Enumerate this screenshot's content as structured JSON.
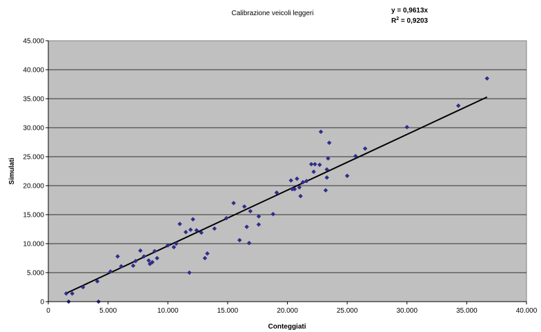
{
  "chart_data": {
    "type": "scatter",
    "title": "Calibrazione veicoli leggeri",
    "xlabel": "Conteggiati",
    "ylabel": "Simulati",
    "xlim": [
      0,
      40000
    ],
    "ylim": [
      0,
      45000
    ],
    "x_ticks": [
      "0",
      "5.000",
      "10.000",
      "15.000",
      "20.000",
      "25.000",
      "30.000",
      "35.000",
      "40.000"
    ],
    "y_ticks": [
      "0",
      "5.000",
      "10.000",
      "15.000",
      "20.000",
      "25.000",
      "30.000",
      "35.000",
      "40.000",
      "45.000"
    ],
    "grid": "horizontal",
    "plot_background": "#c0c0c0",
    "marker_color": "#2e2e8c",
    "trendline": {
      "slope": 0.9613,
      "x_range": [
        1500,
        36700
      ],
      "equation_label": "y = 0,9613x",
      "r2_prefix": "R",
      "r2_exponent": "2",
      "r2_value": " = 0,9203"
    },
    "points": [
      [
        1500,
        1400
      ],
      [
        1700,
        0
      ],
      [
        2000,
        1400
      ],
      [
        2900,
        2500
      ],
      [
        4100,
        3500
      ],
      [
        4200,
        0
      ],
      [
        5200,
        5200
      ],
      [
        5800,
        7800
      ],
      [
        6100,
        6100
      ],
      [
        7100,
        6200
      ],
      [
        7300,
        7000
      ],
      [
        7700,
        8800
      ],
      [
        8000,
        7800
      ],
      [
        8400,
        7100
      ],
      [
        8500,
        6500
      ],
      [
        8700,
        6800
      ],
      [
        8900,
        8700
      ],
      [
        9100,
        7500
      ],
      [
        10000,
        9700
      ],
      [
        10500,
        9400
      ],
      [
        10700,
        10000
      ],
      [
        11000,
        13400
      ],
      [
        11500,
        12000
      ],
      [
        11800,
        5000
      ],
      [
        11900,
        12400
      ],
      [
        12100,
        14200
      ],
      [
        12400,
        12300
      ],
      [
        12800,
        11900
      ],
      [
        13100,
        7500
      ],
      [
        13300,
        8300
      ],
      [
        13900,
        12600
      ],
      [
        14900,
        14400
      ],
      [
        15500,
        17000
      ],
      [
        16000,
        10600
      ],
      [
        16400,
        16400
      ],
      [
        16600,
        12900
      ],
      [
        16800,
        10100
      ],
      [
        16900,
        15600
      ],
      [
        17600,
        14700
      ],
      [
        17600,
        13300
      ],
      [
        18800,
        15100
      ],
      [
        19100,
        18800
      ],
      [
        20300,
        20900
      ],
      [
        20400,
        19400
      ],
      [
        20600,
        19400
      ],
      [
        20800,
        21200
      ],
      [
        21000,
        19700
      ],
      [
        21100,
        18200
      ],
      [
        21300,
        20600
      ],
      [
        21600,
        20800
      ],
      [
        22000,
        23700
      ],
      [
        22200,
        22400
      ],
      [
        22300,
        23700
      ],
      [
        22700,
        23600
      ],
      [
        22800,
        29300
      ],
      [
        23200,
        19200
      ],
      [
        23300,
        21400
      ],
      [
        23300,
        22800
      ],
      [
        23400,
        24700
      ],
      [
        23500,
        27400
      ],
      [
        25000,
        21700
      ],
      [
        25700,
        25100
      ],
      [
        26500,
        26400
      ],
      [
        30000,
        30100
      ],
      [
        34300,
        33800
      ],
      [
        36700,
        38500
      ]
    ]
  }
}
